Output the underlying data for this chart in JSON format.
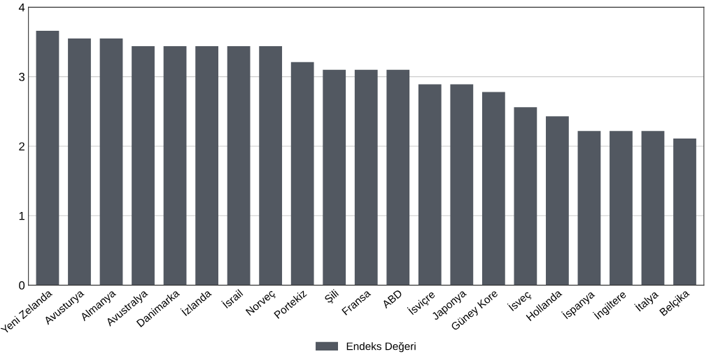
{
  "chart_data": {
    "type": "bar",
    "categories": [
      "Yeni Zelanda",
      "Avusturya",
      "Almanya",
      "Avustralya",
      "Danimarka",
      "İzlanda",
      "İsrail",
      "Norveç",
      "Portekiz",
      "Şili",
      "Fransa",
      "ABD",
      "İsviçre",
      "Japonya",
      "Güney Kore",
      "İsveç",
      "Hollanda",
      "İspanya",
      "İngiltere",
      "İtalya",
      "Belçika"
    ],
    "series": [
      {
        "name": "Endeks Değeri",
        "color": "#525861",
        "values": [
          3.66,
          3.55,
          3.55,
          3.44,
          3.44,
          3.44,
          3.44,
          3.44,
          3.21,
          3.1,
          3.1,
          3.1,
          2.89,
          2.89,
          2.78,
          2.56,
          2.43,
          2.22,
          2.22,
          2.22,
          2.11
        ]
      }
    ],
    "ylim": [
      0,
      4
    ],
    "yticks": [
      0,
      1,
      2,
      3,
      4
    ],
    "grid": "y",
    "legend": "bottom"
  }
}
